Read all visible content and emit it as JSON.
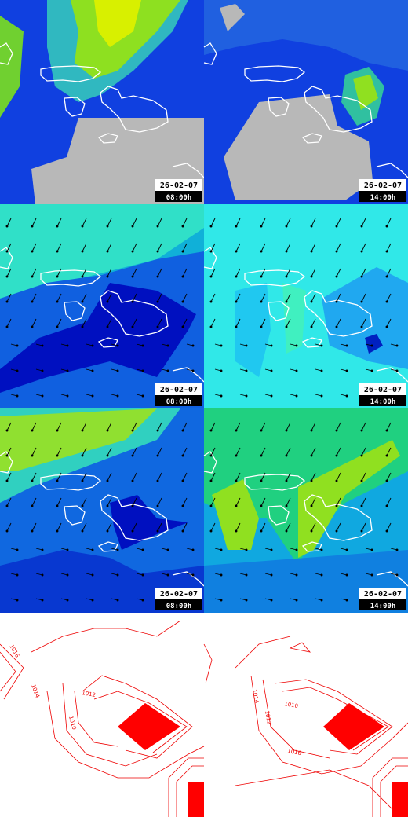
{
  "panels": [
    {
      "date": "26-02-07",
      "time": "08:00h"
    },
    {
      "date": "26-02-07",
      "time": "14:00h"
    },
    {
      "date": "26-02-07",
      "time": "08:00h"
    },
    {
      "date": "26-02-07",
      "time": "14:00h"
    },
    {
      "date": "26-02-07",
      "time": "08:00h"
    },
    {
      "date": "26-02-07",
      "time": "14:00h"
    }
  ],
  "pressure_panels": [
    {
      "contour_labels": [
        "1016",
        "1014",
        "1012",
        "1010"
      ]
    },
    {
      "contour_labels": [
        "1014",
        "1012",
        "1010",
        "1016"
      ]
    }
  ]
}
